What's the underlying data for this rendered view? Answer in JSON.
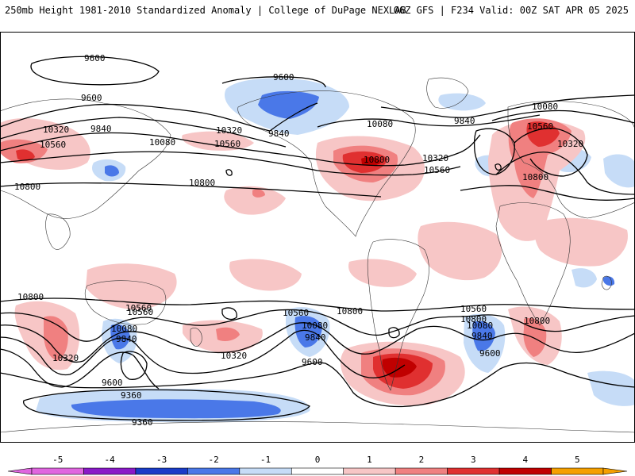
{
  "header": {
    "left": "250mb Height 1981-2010 Standardized Anomaly | College of DuPage NEXLAB",
    "right": "06Z GFS | F234 Valid: 00Z SAT APR 05 2025"
  },
  "colors": {
    "neg5": "#e066e0",
    "neg4": "#8a1ac8",
    "neg3": "#1a3cc8",
    "neg2": "#4a78e8",
    "neg1": "#c6dcf7",
    "pos1": "#f7c6c6",
    "pos2": "#f08080",
    "pos3": "#e03030",
    "pos4": "#c00000",
    "pos5": "#f5a000",
    "contour": "#000000"
  },
  "colorbar": {
    "ticks": [
      "-5",
      "-4",
      "-3",
      "-2",
      "-1",
      "0",
      "1",
      "2",
      "3",
      "4",
      "5"
    ]
  },
  "contour_labels": [
    {
      "id": "c1",
      "text": "9600"
    },
    {
      "id": "c2",
      "text": "9600"
    },
    {
      "id": "c3",
      "text": "9600"
    },
    {
      "id": "c4",
      "text": "10320"
    },
    {
      "id": "c5",
      "text": "10560"
    },
    {
      "id": "c6",
      "text": "9840"
    },
    {
      "id": "c7",
      "text": "10080"
    },
    {
      "id": "c8",
      "text": "10800"
    },
    {
      "id": "c9",
      "text": "10320"
    },
    {
      "id": "c10",
      "text": "10560"
    },
    {
      "id": "c11",
      "text": "9840"
    },
    {
      "id": "c12",
      "text": "10800"
    },
    {
      "id": "c13",
      "text": "10800"
    },
    {
      "id": "c14",
      "text": "10080"
    },
    {
      "id": "c15",
      "text": "10320"
    },
    {
      "id": "c16",
      "text": "10560"
    },
    {
      "id": "c17",
      "text": "9840"
    },
    {
      "id": "c18",
      "text": "10080"
    },
    {
      "id": "c19",
      "text": "10560"
    },
    {
      "id": "c20",
      "text": "10320"
    },
    {
      "id": "c21",
      "text": "10800"
    },
    {
      "id": "c22",
      "text": "10800"
    },
    {
      "id": "c23",
      "text": "10560"
    },
    {
      "id": "c24",
      "text": "10080"
    },
    {
      "id": "c25",
      "text": "9840"
    },
    {
      "id": "c26",
      "text": "10320"
    },
    {
      "id": "c27",
      "text": "9600"
    },
    {
      "id": "c28",
      "text": "9360"
    },
    {
      "id": "c29",
      "text": "9360"
    },
    {
      "id": "c30",
      "text": "10560"
    },
    {
      "id": "c31",
      "text": "10080"
    },
    {
      "id": "c32",
      "text": "9840"
    },
    {
      "id": "c33",
      "text": "9600"
    },
    {
      "id": "c34",
      "text": "10800"
    },
    {
      "id": "c35",
      "text": "10560"
    },
    {
      "id": "c36",
      "text": "10320"
    },
    {
      "id": "c37",
      "text": "10080"
    },
    {
      "id": "c38",
      "text": "9840"
    },
    {
      "id": "c39",
      "text": "9600"
    },
    {
      "id": "c40",
      "text": "10800"
    },
    {
      "id": "c41",
      "text": "10560"
    },
    {
      "id": "c42",
      "text": "10800"
    }
  ]
}
